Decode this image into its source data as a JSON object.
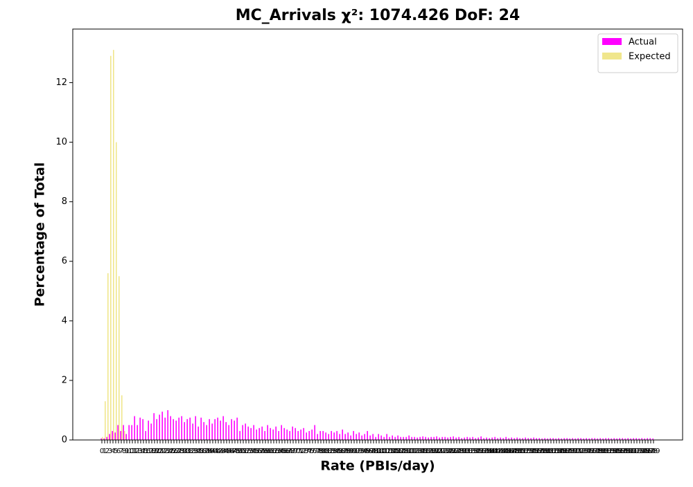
{
  "chart_data": {
    "type": "bar",
    "title": "MC_Arrivals χ²: 1074.426 DoF: 24",
    "xlabel": "Rate (PBIs/day)",
    "ylabel": "Percentage of Total",
    "legend": "upper right",
    "categories": [
      0,
      1,
      2,
      3,
      4,
      5,
      6,
      7,
      8,
      9,
      10,
      11,
      12,
      13,
      14,
      15,
      16,
      17,
      18,
      19,
      20,
      21,
      22,
      23,
      24,
      25,
      26,
      27,
      28,
      29,
      30,
      31,
      32,
      33,
      34,
      35,
      36,
      37,
      38,
      39,
      40,
      41,
      42,
      43,
      44,
      45,
      46,
      47,
      48,
      49,
      50,
      51,
      52,
      53,
      54,
      55,
      56,
      57,
      58,
      59,
      60,
      61,
      62,
      63,
      64,
      65,
      66,
      67,
      68,
      69,
      70,
      71,
      72,
      73,
      74,
      75,
      76,
      77,
      78,
      79,
      80,
      81,
      82,
      83,
      84,
      85,
      86,
      87,
      88,
      89,
      90,
      91,
      92,
      93,
      94,
      95,
      96,
      97,
      98,
      99,
      100,
      101,
      102,
      103,
      104,
      105,
      106,
      107,
      108,
      109,
      110,
      111,
      112,
      113,
      114,
      115,
      116,
      117,
      118,
      119,
      120,
      121,
      122,
      123,
      124,
      125,
      126,
      127,
      128,
      129,
      130,
      131,
      132,
      133,
      134,
      135,
      136,
      137,
      138,
      139,
      140,
      141,
      142,
      143,
      144,
      145,
      146,
      147,
      148,
      149,
      150,
      151,
      152,
      153,
      154,
      155,
      156,
      157,
      158,
      159,
      160,
      161,
      162,
      163,
      164,
      165,
      166,
      167,
      168,
      169,
      170,
      171,
      172,
      173,
      174,
      175,
      176,
      177,
      178,
      179,
      180,
      181,
      182,
      183,
      184,
      185,
      186,
      187,
      188,
      189,
      190,
      191,
      192,
      193,
      194,
      195,
      196,
      197,
      198,
      199
    ],
    "series": [
      {
        "name": "Actual",
        "color": "#ff00ff",
        "values": [
          0.05,
          0.05,
          0.1,
          0.2,
          0.3,
          0.25,
          0.5,
          0.3,
          0.5,
          0.2,
          0.5,
          0.5,
          0.8,
          0.5,
          0.75,
          0.7,
          0.3,
          0.65,
          0.55,
          0.9,
          0.7,
          0.85,
          0.95,
          0.75,
          1.0,
          0.8,
          0.7,
          0.65,
          0.75,
          0.8,
          0.6,
          0.7,
          0.75,
          0.55,
          0.8,
          0.45,
          0.75,
          0.6,
          0.5,
          0.7,
          0.55,
          0.7,
          0.75,
          0.65,
          0.8,
          0.6,
          0.5,
          0.7,
          0.65,
          0.75,
          0.3,
          0.5,
          0.55,
          0.45,
          0.4,
          0.5,
          0.35,
          0.4,
          0.45,
          0.3,
          0.5,
          0.4,
          0.35,
          0.45,
          0.3,
          0.5,
          0.4,
          0.35,
          0.3,
          0.45,
          0.4,
          0.3,
          0.35,
          0.4,
          0.25,
          0.3,
          0.35,
          0.5,
          0.2,
          0.3,
          0.3,
          0.25,
          0.2,
          0.3,
          0.25,
          0.3,
          0.2,
          0.35,
          0.2,
          0.25,
          0.15,
          0.3,
          0.2,
          0.25,
          0.15,
          0.2,
          0.3,
          0.15,
          0.2,
          0.1,
          0.2,
          0.15,
          0.1,
          0.2,
          0.1,
          0.15,
          0.1,
          0.15,
          0.1,
          0.1,
          0.1,
          0.15,
          0.1,
          0.1,
          0.08,
          0.1,
          0.12,
          0.1,
          0.08,
          0.1,
          0.1,
          0.12,
          0.08,
          0.1,
          0.1,
          0.08,
          0.1,
          0.12,
          0.08,
          0.1,
          0.06,
          0.08,
          0.1,
          0.08,
          0.1,
          0.06,
          0.08,
          0.12,
          0.06,
          0.08,
          0.06,
          0.08,
          0.1,
          0.06,
          0.08,
          0.06,
          0.1,
          0.06,
          0.08,
          0.06,
          0.08,
          0.06,
          0.06,
          0.08,
          0.06,
          0.06,
          0.08,
          0.06,
          0.06,
          0.05,
          0.06,
          0.05,
          0.06,
          0.06,
          0.05,
          0.06,
          0.05,
          0.06,
          0.06,
          0.05,
          0.06,
          0.05,
          0.06,
          0.06,
          0.05,
          0.06,
          0.05,
          0.06,
          0.06,
          0.05,
          0.06,
          0.05,
          0.06,
          0.06,
          0.05,
          0.06,
          0.05,
          0.06,
          0.06,
          0.05,
          0.06,
          0.05,
          0.06,
          0.06,
          0.05,
          0.06,
          0.05,
          0.06,
          0.06,
          0.05
        ]
      },
      {
        "name": "Expected",
        "color": "#f0e68c",
        "values": [
          0.1,
          1.3,
          5.6,
          12.9,
          13.1,
          10.0,
          5.5,
          1.5,
          0.3,
          0,
          0,
          0,
          0,
          0,
          0,
          0,
          0,
          0,
          0,
          0,
          0,
          0,
          0,
          0,
          0,
          0,
          0,
          0,
          0,
          0,
          0,
          0,
          0,
          0,
          0,
          0,
          0,
          0,
          0,
          0,
          0,
          0,
          0,
          0,
          0,
          0,
          0,
          0,
          0,
          0,
          0,
          0,
          0,
          0,
          0,
          0,
          0,
          0,
          0,
          0,
          0,
          0,
          0,
          0,
          0,
          0,
          0,
          0,
          0,
          0,
          0,
          0,
          0,
          0,
          0,
          0,
          0,
          0,
          0,
          0,
          0,
          0,
          0,
          0,
          0,
          0,
          0,
          0,
          0,
          0,
          0,
          0,
          0,
          0,
          0,
          0,
          0,
          0,
          0,
          0,
          0,
          0,
          0,
          0,
          0,
          0,
          0,
          0,
          0,
          0,
          0,
          0,
          0,
          0,
          0,
          0,
          0,
          0,
          0,
          0,
          0,
          0,
          0,
          0,
          0,
          0,
          0,
          0,
          0,
          0,
          0,
          0,
          0,
          0,
          0,
          0,
          0,
          0,
          0,
          0,
          0,
          0,
          0,
          0,
          0,
          0,
          0,
          0,
          0,
          0,
          0,
          0,
          0,
          0,
          0,
          0,
          0,
          0,
          0,
          0,
          0,
          0,
          0,
          0,
          0,
          0,
          0,
          0,
          0,
          0,
          0,
          0,
          0,
          0,
          0,
          0,
          0,
          0,
          0,
          0,
          0,
          0,
          0,
          0,
          0,
          0,
          0,
          0,
          0,
          0,
          0,
          0,
          0,
          0,
          0,
          0,
          0,
          0,
          0,
          0
        ]
      }
    ],
    "ylim": [
      0,
      13.8
    ],
    "yticks": [
      0,
      2,
      4,
      6,
      8,
      10,
      12
    ]
  }
}
